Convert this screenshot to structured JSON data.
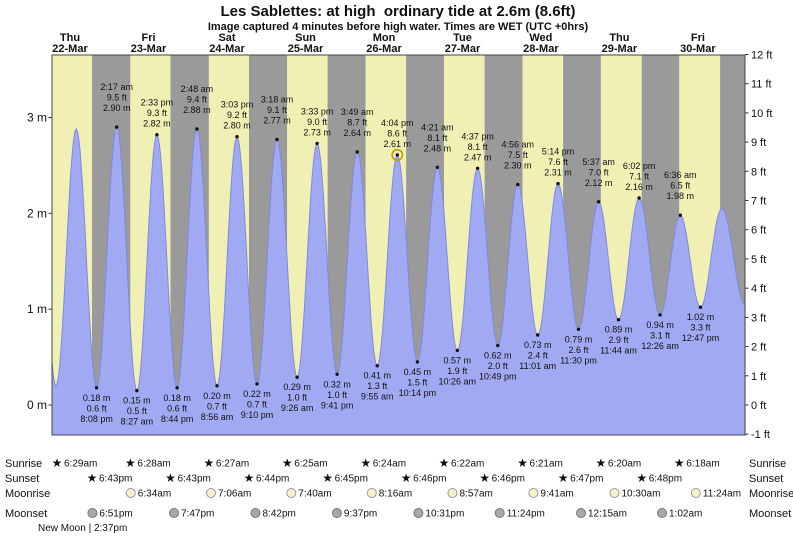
{
  "title": "Les Sablettes: at high  ordinary tide at 2.6m (8.6ft)",
  "subtitle": "Image captured 4 minutes before high water. Times are WET (UTC +0hrs)",
  "new_moon": "New Moon | 2:37pm",
  "colors": {
    "day_band": "#f0f0b4",
    "night_band": "#9a9a9a",
    "tide_fill": "#a2a9f3",
    "tide_stroke": "#8089e0",
    "date_red": "#dd3333",
    "current_ring": "#b8a000",
    "sunrise_star": "#e0b820",
    "sunset_star": "#cf3b1e",
    "moonrise_fill": "#f5f3cf",
    "moonrise_stroke": "#999999",
    "moonset_fill": "#a8a8a8",
    "moonset_stroke": "#777777"
  },
  "chart_data": {
    "type": "area",
    "title": "Les Sablettes: at high  ordinary tide at 2.6m (8.6ft)",
    "x_domain_hours": [
      6.483,
      218.4
    ],
    "y_domain_m": [
      -0.313,
      3.652
    ],
    "grid": false,
    "day_labels": [
      {
        "dow": "Thu",
        "date": "22-Mar"
      },
      {
        "dow": "Fri",
        "date": "23-Mar"
      },
      {
        "dow": "Sat",
        "date": "24-Mar"
      },
      {
        "dow": "Sun",
        "date": "25-Mar"
      },
      {
        "dow": "Mon",
        "date": "26-Mar"
      },
      {
        "dow": "Tue",
        "date": "27-Mar"
      },
      {
        "dow": "Wed",
        "date": "28-Mar"
      },
      {
        "dow": "Thu",
        "date": "29-Mar"
      },
      {
        "dow": "Fri",
        "date": "30-Mar"
      }
    ],
    "y_axis_left": {
      "unit": "m",
      "ticks": [
        "3 m",
        "2 m",
        "1 m",
        "0 m"
      ]
    },
    "y_axis_right": {
      "unit": "ft",
      "ticks": [
        "12 ft",
        "11 ft",
        "10 ft",
        "9 ft",
        "8 ft",
        "7 ft",
        "6 ft",
        "5 ft",
        "4 ft",
        "3 ft",
        "2 ft",
        "1 ft",
        "0 ft",
        "-1 ft"
      ]
    },
    "tide_events": [
      {
        "t": 1.6,
        "kind": "high",
        "m": 2.85,
        "labeled": false
      },
      {
        "t": 7.7,
        "kind": "low",
        "m": 0.2,
        "labeled": false
      },
      {
        "t": 13.9,
        "kind": "high",
        "m": 2.88,
        "labeled": false
      },
      {
        "t": 20.13,
        "kind": "low",
        "m": 0.18,
        "labeled": true,
        "m_label": "0.18 m",
        "ft_label": "0.6 ft",
        "time_label": "8:08 pm"
      },
      {
        "t": 26.28,
        "kind": "high",
        "m": 2.9,
        "labeled": true,
        "time_label": "2:17 am",
        "ft_label": "9.5 ft",
        "m_label": "2.90 m"
      },
      {
        "t": 32.45,
        "kind": "low",
        "m": 0.15,
        "labeled": true,
        "m_label": "0.15 m",
        "ft_label": "0.5 ft",
        "time_label": "8:27 am"
      },
      {
        "t": 38.55,
        "kind": "high",
        "m": 2.82,
        "labeled": true,
        "time_label": "2:33 pm",
        "ft_label": "9.3 ft",
        "m_label": "2.82 m"
      },
      {
        "t": 44.73,
        "kind": "low",
        "m": 0.18,
        "labeled": true,
        "m_label": "0.18 m",
        "ft_label": "0.6 ft",
        "time_label": "8:44 pm"
      },
      {
        "t": 50.8,
        "kind": "high",
        "m": 2.88,
        "labeled": true,
        "time_label": "2:48 am",
        "ft_label": "9.4 ft",
        "m_label": "2.88 m"
      },
      {
        "t": 56.93,
        "kind": "low",
        "m": 0.2,
        "labeled": true,
        "m_label": "0.20 m",
        "ft_label": "0.7 ft",
        "time_label": "8:56 am"
      },
      {
        "t": 63.05,
        "kind": "high",
        "m": 2.8,
        "labeled": true,
        "time_label": "3:03 pm",
        "ft_label": "9.2 ft",
        "m_label": "2.80 m"
      },
      {
        "t": 69.17,
        "kind": "low",
        "m": 0.22,
        "labeled": true,
        "m_label": "0.22 m",
        "ft_label": "0.7 ft",
        "time_label": "9:10 pm"
      },
      {
        "t": 75.3,
        "kind": "high",
        "m": 2.77,
        "labeled": true,
        "time_label": "3:18 am",
        "ft_label": "9.1 ft",
        "m_label": "2.77 m"
      },
      {
        "t": 81.43,
        "kind": "low",
        "m": 0.29,
        "labeled": true,
        "m_label": "0.29 m",
        "ft_label": "1.0 ft",
        "time_label": "9:26 am"
      },
      {
        "t": 87.55,
        "kind": "high",
        "m": 2.73,
        "labeled": true,
        "time_label": "3:33 pm",
        "ft_label": "9.0 ft",
        "m_label": "2.73 m"
      },
      {
        "t": 93.68,
        "kind": "low",
        "m": 0.32,
        "labeled": true,
        "m_label": "0.32 m",
        "ft_label": "1.0 ft",
        "time_label": "9:41 pm"
      },
      {
        "t": 99.82,
        "kind": "high",
        "m": 2.64,
        "labeled": true,
        "time_label": "3:49 am",
        "ft_label": "8.7 ft",
        "m_label": "2.64 m"
      },
      {
        "t": 105.92,
        "kind": "low",
        "m": 0.41,
        "labeled": true,
        "m_label": "0.41 m",
        "ft_label": "1.3 ft",
        "time_label": "9:55 am"
      },
      {
        "t": 112.07,
        "kind": "high",
        "m": 2.61,
        "labeled": true,
        "current": true,
        "time_label": "4:04 pm",
        "ft_label": "8.6 ft",
        "m_label": "2.61 m"
      },
      {
        "t": 118.23,
        "kind": "low",
        "m": 0.45,
        "labeled": true,
        "m_label": "0.45 m",
        "ft_label": "1.5 ft",
        "time_label": "10:14 pm"
      },
      {
        "t": 124.35,
        "kind": "high",
        "m": 2.48,
        "labeled": true,
        "time_label": "4:21 am",
        "ft_label": "8.1 ft",
        "m_label": "2.48 m"
      },
      {
        "t": 130.43,
        "kind": "low",
        "m": 0.57,
        "labeled": true,
        "m_label": "0.57 m",
        "ft_label": "1.9 ft",
        "time_label": "10:26 am"
      },
      {
        "t": 136.62,
        "kind": "high",
        "m": 2.47,
        "labeled": true,
        "time_label": "4:37 pm",
        "ft_label": "8.1 ft",
        "m_label": "2.47 m"
      },
      {
        "t": 142.82,
        "kind": "low",
        "m": 0.62,
        "labeled": true,
        "m_label": "0.62 m",
        "ft_label": "2.0 ft",
        "time_label": "10:49 pm"
      },
      {
        "t": 148.93,
        "kind": "high",
        "m": 2.3,
        "labeled": true,
        "time_label": "4:56 am",
        "ft_label": "7.5 ft",
        "m_label": "2.30 m"
      },
      {
        "t": 155.02,
        "kind": "low",
        "m": 0.73,
        "labeled": true,
        "m_label": "0.73 m",
        "ft_label": "2.4 ft",
        "time_label": "11:01 am"
      },
      {
        "t": 161.23,
        "kind": "high",
        "m": 2.31,
        "labeled": true,
        "time_label": "5:14 pm",
        "ft_label": "7.6 ft",
        "m_label": "2.31 m"
      },
      {
        "t": 167.5,
        "kind": "low",
        "m": 0.79,
        "labeled": true,
        "m_label": "0.79 m",
        "ft_label": "2.6 ft",
        "time_label": "11:30 pm"
      },
      {
        "t": 173.62,
        "kind": "high",
        "m": 2.12,
        "labeled": true,
        "time_label": "5:37 am",
        "ft_label": "7.0 ft",
        "m_label": "2.12 m"
      },
      {
        "t": 179.73,
        "kind": "low",
        "m": 0.89,
        "labeled": true,
        "m_label": "0.89 m",
        "ft_label": "2.9 ft",
        "time_label": "11:44 am"
      },
      {
        "t": 186.03,
        "kind": "high",
        "m": 2.16,
        "labeled": true,
        "time_label": "6:02 pm",
        "ft_label": "7.1 ft",
        "m_label": "2.16 m"
      },
      {
        "t": 192.43,
        "kind": "low",
        "m": 0.94,
        "labeled": true,
        "m_label": "0.94 m",
        "ft_label": "3.1 ft",
        "time_label": "12:26 am"
      },
      {
        "t": 198.6,
        "kind": "high",
        "m": 1.98,
        "labeled": true,
        "time_label": "6:36 am",
        "ft_label": "6.5 ft",
        "m_label": "1.98 m"
      },
      {
        "t": 204.78,
        "kind": "low",
        "m": 1.02,
        "labeled": true,
        "m_label": "1.02 m",
        "ft_label": "3.3 ft",
        "time_label": "12:47 pm"
      },
      {
        "t": 211.3,
        "kind": "high",
        "m": 2.05,
        "labeled": false
      },
      {
        "t": 218.4,
        "kind": "low",
        "m": 1.05,
        "labeled": false
      }
    ]
  },
  "sun_moon": {
    "rows": [
      {
        "label": "Sunrise",
        "icon": "sunrise-star",
        "entries": [
          {
            "time": "6:29am",
            "t": 6.483
          },
          {
            "time": "6:28am",
            "t": 30.467
          },
          {
            "time": "6:27am",
            "t": 54.45
          },
          {
            "time": "6:25am",
            "t": 78.417
          },
          {
            "time": "6:24am",
            "t": 102.4
          },
          {
            "time": "6:22am",
            "t": 126.367
          },
          {
            "time": "6:21am",
            "t": 150.35
          },
          {
            "time": "6:20am",
            "t": 174.333
          },
          {
            "time": "6:18am",
            "t": 198.3
          }
        ]
      },
      {
        "label": "Sunset",
        "icon": "sunset-star",
        "entries": [
          {
            "time": "6:43pm",
            "t": 18.717
          },
          {
            "time": "6:43pm",
            "t": 42.717
          },
          {
            "time": "6:44pm",
            "t": 66.733
          },
          {
            "time": "6:45pm",
            "t": 90.75
          },
          {
            "time": "6:46pm",
            "t": 114.767
          },
          {
            "time": "6:46pm",
            "t": 138.767
          },
          {
            "time": "6:47pm",
            "t": 162.783
          },
          {
            "time": "6:48pm",
            "t": 186.8
          }
        ]
      },
      {
        "label": "Moonrise",
        "icon": "moonrise-circle",
        "entries": [
          {
            "time": "6:34am",
            "t": 30.567
          },
          {
            "time": "7:06am",
            "t": 55.1
          },
          {
            "time": "7:40am",
            "t": 79.667
          },
          {
            "time": "8:16am",
            "t": 104.267
          },
          {
            "time": "8:57am",
            "t": 128.95
          },
          {
            "time": "9:41am",
            "t": 153.683
          },
          {
            "time": "10:30am",
            "t": 178.5
          },
          {
            "time": "11:24am",
            "t": 203.4
          }
        ]
      },
      {
        "label": "Moonset",
        "icon": "moonset-circle",
        "entries": [
          {
            "time": "6:51pm",
            "t": 18.85
          },
          {
            "time": "7:47pm",
            "t": 43.783
          },
          {
            "time": "8:42pm",
            "t": 68.7
          },
          {
            "time": "9:37pm",
            "t": 93.617
          },
          {
            "time": "10:31pm",
            "t": 118.517
          },
          {
            "time": "11:24pm",
            "t": 143.4
          },
          {
            "time": "12:15am",
            "t": 168.25
          },
          {
            "time": "1:02am",
            "t": 193.033
          }
        ]
      }
    ]
  }
}
